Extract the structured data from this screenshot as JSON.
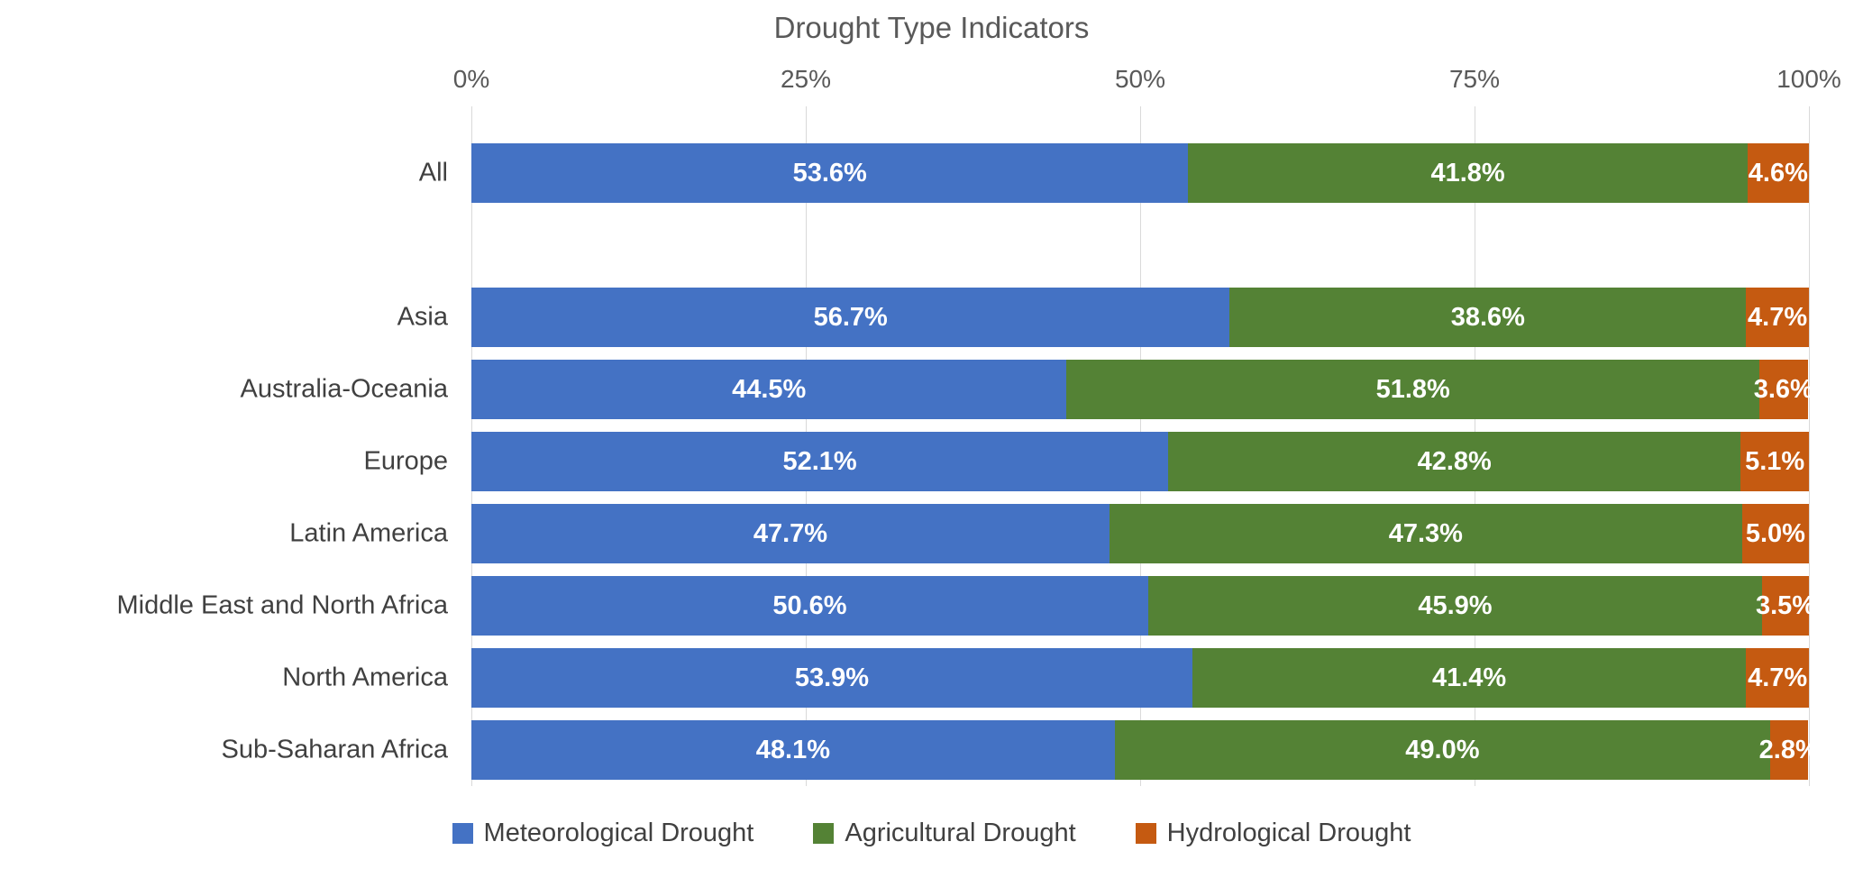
{
  "chart_data": {
    "type": "bar",
    "orientation": "horizontal",
    "stacked": true,
    "stack_total": "100%",
    "title": "Drought Type Indicators",
    "categories": [
      "All",
      "Asia",
      "Australia-Oceania",
      "Europe",
      "Latin America",
      "Middle East and North Africa",
      "North America",
      "Sub-Saharan Africa"
    ],
    "series": [
      {
        "name": "Meteorological Drought",
        "color": "#4472C4",
        "values": [
          53.6,
          56.7,
          44.5,
          52.1,
          47.7,
          50.6,
          53.9,
          48.1
        ]
      },
      {
        "name": "Agricultural Drought",
        "color": "#548235",
        "values": [
          41.8,
          38.6,
          51.8,
          42.8,
          47.3,
          45.9,
          41.4,
          49.0
        ]
      },
      {
        "name": "Hydrological Drought",
        "color": "#C55A11",
        "values": [
          4.6,
          4.7,
          3.6,
          5.1,
          5.0,
          3.5,
          4.7,
          2.8
        ]
      }
    ],
    "data_labels": "shown on each segment, white bold, format 0.0%",
    "x_axis": {
      "position": "top",
      "range": [
        0,
        100
      ],
      "ticks": [
        "0%",
        "25%",
        "50%",
        "75%",
        "100%"
      ]
    },
    "gridlines": {
      "vertical": true,
      "color": "#d9d9d9"
    },
    "legend": {
      "position": "bottom",
      "entries": [
        "Meteorological Drought",
        "Agricultural Drought",
        "Hydrological Drought"
      ]
    },
    "layout_note": "blank row gap between 'All' bar and regional bars",
    "text_colors": {
      "title": "#595959",
      "axis_ticks": "#595959",
      "category_labels": "#404040",
      "legend": "#404040"
    }
  }
}
